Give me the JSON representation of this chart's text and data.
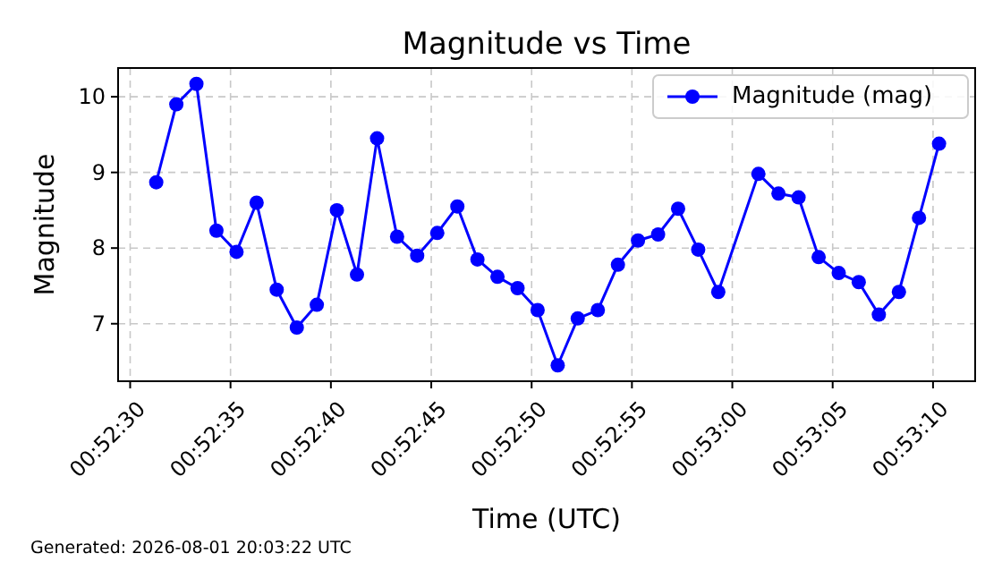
{
  "chart_data": {
    "type": "line",
    "title": "Magnitude vs Time",
    "xlabel": "Time (UTC)",
    "ylabel": "Magnitude",
    "annotations": [
      "Generated: 2026-08-01 20:03:22 UTC"
    ],
    "x": [
      0.875361,
      0.875639,
      0.875917,
      0.876194,
      0.876472,
      0.87675,
      0.877028,
      0.877306,
      0.877583,
      0.877861,
      0.878139,
      0.878417,
      0.878694,
      0.878972,
      0.87925,
      0.879528,
      0.879806,
      0.880083,
      0.880361,
      0.880639,
      0.880917,
      0.881194,
      0.881472,
      0.88175,
      0.882028,
      0.882306,
      0.882583,
      0.882861,
      0.883139,
      0.883694,
      0.883972,
      0.88425,
      0.884528,
      0.884806,
      0.885083,
      0.885361,
      0.885639,
      0.885917,
      0.886194
    ],
    "series": [
      {
        "name": "Magnitude (mag)",
        "color": "#0000ff",
        "values": [
          8.87,
          9.9,
          10.17,
          8.23,
          7.95,
          8.6,
          7.45,
          6.95,
          7.25,
          8.5,
          7.65,
          9.45,
          8.15,
          7.9,
          8.2,
          8.55,
          7.85,
          7.62,
          7.47,
          7.18,
          6.45,
          7.07,
          7.18,
          7.78,
          8.1,
          8.18,
          8.52,
          7.98,
          7.42,
          8.98,
          8.72,
          8.67,
          7.88,
          7.67,
          7.55,
          7.12,
          7.42,
          8.4,
          9.38
        ]
      }
    ],
    "xlim": [
      0.874833,
      0.886694
    ],
    "xticks": [
      {
        "value": 0.875,
        "label": "00:52:30"
      },
      {
        "value": 0.876389,
        "label": "00:52:35"
      },
      {
        "value": 0.877778,
        "label": "00:52:40"
      },
      {
        "value": 0.879167,
        "label": "00:52:45"
      },
      {
        "value": 0.880556,
        "label": "00:52:50"
      },
      {
        "value": 0.881944,
        "label": "00:52:55"
      },
      {
        "value": 0.883333,
        "label": "00:53:00"
      },
      {
        "value": 0.884722,
        "label": "00:53:05"
      },
      {
        "value": 0.886111,
        "label": "00:53:10"
      }
    ],
    "ylim": [
      6.24,
      10.38
    ],
    "yticks": [
      7,
      8,
      9,
      10
    ],
    "grid": true,
    "legend": "top right",
    "marker": "circle",
    "line_style": "solid"
  }
}
